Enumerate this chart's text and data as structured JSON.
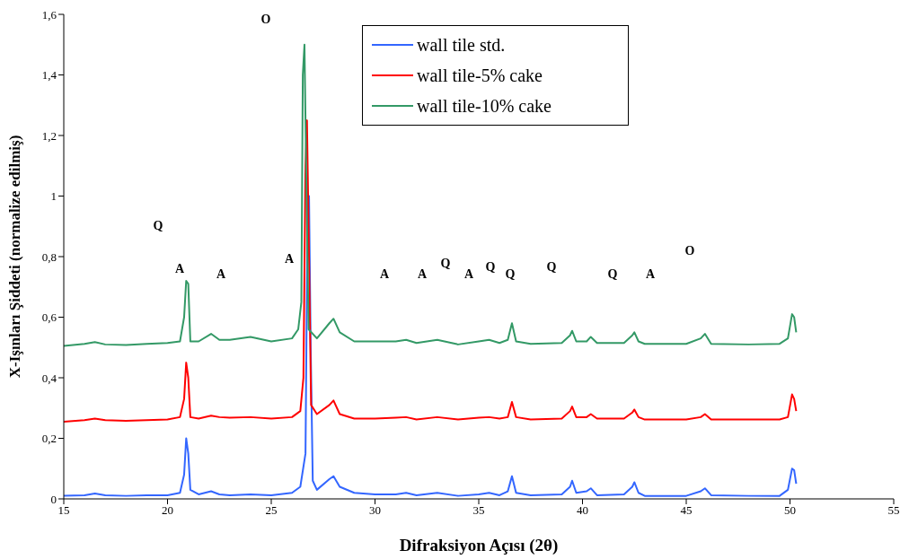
{
  "chart_data": {
    "type": "line",
    "xlabel": "Difraksiyon Açısı (2θ)",
    "ylabel": "X-Işınları Şiddeti (normalize edilmiş)",
    "series": [
      {
        "name": "wall tile std.",
        "color": "#3366ff",
        "x": [
          15,
          16,
          16.5,
          17,
          18,
          19,
          20,
          20.6,
          20.8,
          20.9,
          21,
          21.1,
          21.5,
          22.1,
          22.5,
          23,
          24,
          25,
          26,
          26.4,
          26.65,
          26.75,
          26.82,
          26.9,
          27.0,
          27.2,
          27.8,
          28,
          28.3,
          29,
          30,
          31,
          31.5,
          32,
          33,
          34,
          35,
          35.5,
          36,
          36.4,
          36.6,
          36.8,
          37.5,
          39,
          39.4,
          39.5,
          39.7,
          40.2,
          40.4,
          40.7,
          42,
          42.4,
          42.5,
          42.7,
          43,
          45,
          45.7,
          45.9,
          46.2,
          48,
          49.5,
          49.9,
          50.1,
          50.2,
          50.3
        ],
        "values": [
          0.01,
          0.012,
          0.018,
          0.012,
          0.01,
          0.012,
          0.012,
          0.02,
          0.08,
          0.2,
          0.15,
          0.03,
          0.015,
          0.025,
          0.015,
          0.012,
          0.015,
          0.012,
          0.02,
          0.04,
          0.15,
          0.95,
          1.0,
          0.5,
          0.06,
          0.03,
          0.065,
          0.075,
          0.04,
          0.02,
          0.015,
          0.015,
          0.02,
          0.012,
          0.02,
          0.01,
          0.015,
          0.02,
          0.012,
          0.025,
          0.075,
          0.02,
          0.012,
          0.015,
          0.04,
          0.06,
          0.02,
          0.025,
          0.035,
          0.012,
          0.015,
          0.04,
          0.055,
          0.02,
          0.01,
          0.01,
          0.025,
          0.035,
          0.012,
          0.01,
          0.01,
          0.03,
          0.1,
          0.095,
          0.05
        ]
      },
      {
        "name": "wall tile-5% cake",
        "color": "#ff0000",
        "x": [
          15,
          16,
          16.5,
          17,
          18,
          19,
          20,
          20.6,
          20.8,
          20.9,
          21,
          21.1,
          21.5,
          22.1,
          22.5,
          23,
          24,
          25,
          26,
          26.4,
          26.55,
          26.65,
          26.72,
          26.82,
          26.92,
          27.2,
          27.8,
          28,
          28.3,
          29,
          30,
          31,
          31.5,
          32,
          33,
          34,
          35,
          35.5,
          36,
          36.4,
          36.6,
          36.8,
          37.5,
          39,
          39.4,
          39.5,
          39.7,
          40.2,
          40.4,
          40.7,
          42,
          42.4,
          42.5,
          42.7,
          43,
          45,
          45.7,
          45.9,
          46.2,
          48,
          49.5,
          49.9,
          50.1,
          50.2,
          50.3
        ],
        "values": [
          0.255,
          0.26,
          0.265,
          0.26,
          0.258,
          0.26,
          0.262,
          0.27,
          0.33,
          0.45,
          0.4,
          0.27,
          0.265,
          0.275,
          0.27,
          0.268,
          0.27,
          0.265,
          0.27,
          0.29,
          0.4,
          1.1,
          1.25,
          0.8,
          0.31,
          0.28,
          0.31,
          0.325,
          0.28,
          0.265,
          0.265,
          0.268,
          0.27,
          0.262,
          0.27,
          0.262,
          0.268,
          0.27,
          0.265,
          0.27,
          0.32,
          0.27,
          0.262,
          0.265,
          0.29,
          0.305,
          0.27,
          0.27,
          0.28,
          0.265,
          0.265,
          0.285,
          0.295,
          0.27,
          0.262,
          0.262,
          0.27,
          0.28,
          0.262,
          0.262,
          0.262,
          0.27,
          0.345,
          0.33,
          0.29
        ]
      },
      {
        "name": "wall tile-10% cake",
        "color": "#339966",
        "x": [
          15,
          16,
          16.5,
          17,
          18,
          19,
          20,
          20.6,
          20.8,
          20.9,
          21,
          21.1,
          21.5,
          22.1,
          22.5,
          23,
          24,
          25,
          26,
          26.3,
          26.45,
          26.52,
          26.6,
          26.7,
          26.8,
          27.2,
          27.8,
          28,
          28.3,
          29,
          30,
          31,
          31.5,
          32,
          33,
          34,
          35,
          35.5,
          36,
          36.4,
          36.6,
          36.8,
          37.5,
          39,
          39.4,
          39.5,
          39.7,
          40.2,
          40.4,
          40.7,
          42,
          42.4,
          42.5,
          42.7,
          43,
          45,
          45.7,
          45.9,
          46.2,
          48,
          49.5,
          49.9,
          50.1,
          50.2,
          50.3
        ],
        "values": [
          0.505,
          0.512,
          0.518,
          0.51,
          0.508,
          0.512,
          0.515,
          0.52,
          0.6,
          0.72,
          0.71,
          0.52,
          0.52,
          0.545,
          0.525,
          0.525,
          0.535,
          0.52,
          0.53,
          0.56,
          0.65,
          1.4,
          1.5,
          1.0,
          0.56,
          0.53,
          0.58,
          0.595,
          0.55,
          0.52,
          0.52,
          0.52,
          0.525,
          0.515,
          0.525,
          0.51,
          0.52,
          0.525,
          0.515,
          0.525,
          0.58,
          0.52,
          0.512,
          0.515,
          0.54,
          0.555,
          0.52,
          0.52,
          0.535,
          0.515,
          0.515,
          0.54,
          0.55,
          0.52,
          0.512,
          0.512,
          0.53,
          0.545,
          0.512,
          0.51,
          0.512,
          0.53,
          0.61,
          0.6,
          0.55
        ]
      }
    ],
    "xlim": [
      15,
      55
    ],
    "xticks": [
      15,
      20,
      25,
      30,
      35,
      40,
      45,
      50,
      55
    ],
    "ylim": [
      0,
      1.6
    ],
    "yticks": [
      0,
      {
        "value": 0.2,
        "label": "0,2"
      },
      {
        "value": 0.4,
        "label": "0,4"
      },
      {
        "value": 0.6,
        "label": "0,6"
      },
      {
        "value": 0.8,
        "label": "0,8"
      },
      1,
      {
        "value": 1.2,
        "label": "1,2"
      },
      {
        "value": 1.4,
        "label": "1,4"
      },
      {
        "value": 1.6,
        "label": "1,6"
      }
    ],
    "grid": false,
    "legend": "top",
    "marker": "none",
    "line_style": "solid",
    "annotations": [
      "Q",
      "A",
      "A",
      "O",
      "A",
      "A",
      "A",
      "Q",
      "A",
      "Q",
      "Q",
      "Q",
      "Q",
      "A",
      "O"
    ]
  }
}
